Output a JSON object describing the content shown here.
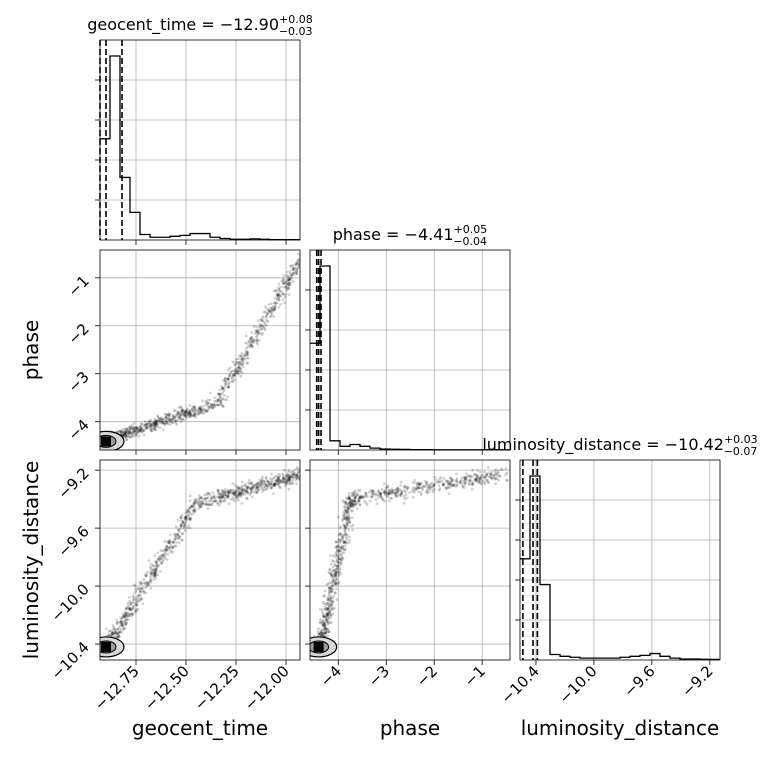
{
  "chart_data": {
    "type": "corner",
    "parameters": [
      "geocent_time",
      "phase",
      "luminosity_distance"
    ],
    "xlabels": [
      "geocent_time",
      "phase",
      "luminosity_distance"
    ],
    "ylabels": [
      "phase",
      "luminosity_distance"
    ],
    "titles": [
      {
        "name": "geocent_time",
        "median": "−12.90",
        "plus": "+0.08",
        "minus": "−0.03"
      },
      {
        "name": "phase",
        "median": "−4.41",
        "plus": "+0.05",
        "minus": "−0.04"
      },
      {
        "name": "luminosity_distance",
        "median": "−10.42",
        "plus": "+0.03",
        "minus": "−0.07"
      }
    ],
    "ranges": {
      "geocent_time": [
        -12.93,
        -11.93
      ],
      "phase": [
        -4.59,
        -0.42
      ],
      "luminosity_distance": [
        -10.51,
        -9.13
      ]
    },
    "ticks": {
      "geocent_time": [
        -12.75,
        -12.5,
        -12.25,
        -12.0
      ],
      "phase": [
        -4,
        -3,
        -2,
        -1
      ],
      "luminosity_distance": [
        -10.4,
        -10.0,
        -9.6,
        -9.2
      ]
    },
    "tick_labels": {
      "geocent_time": [
        "−12.75",
        "−12.50",
        "−12.25",
        "−12.00"
      ],
      "phase": [
        "−4",
        "−3",
        "−2",
        "−1"
      ],
      "luminosity_distance": [
        "−10.4",
        "−10.0",
        "−9.6",
        "−9.2"
      ]
    },
    "quantile_lines": {
      "geocent_time": [
        -12.93,
        -12.9,
        -12.82
      ],
      "phase": [
        -4.45,
        -4.41,
        -4.36
      ],
      "luminosity_distance": [
        -10.49,
        -10.42,
        -10.39
      ]
    },
    "histograms": {
      "geocent_time": [
        0.55,
        1.0,
        0.34,
        0.15,
        0.03,
        0.015,
        0.015,
        0.02,
        0.025,
        0.035,
        0.035,
        0.015,
        0.008,
        0.004,
        0.004,
        0.006,
        0.004,
        0.002,
        0.002,
        0.002
      ],
      "phase": [
        0.58,
        1.0,
        0.05,
        0.02,
        0.03,
        0.02,
        0.01,
        0.005,
        0.004,
        0.003,
        0.002,
        0.002,
        0.001,
        0.001,
        0.001,
        0.001,
        0.001,
        0.001,
        0.001,
        0.001
      ],
      "luminosity_distance": [
        0.55,
        1.0,
        0.41,
        0.03,
        0.02,
        0.015,
        0.01,
        0.01,
        0.01,
        0.01,
        0.015,
        0.02,
        0.025,
        0.035,
        0.02,
        0.01,
        0.005,
        0.005,
        0.004,
        0.003
      ]
    },
    "grid": true
  },
  "colors": {
    "axes": "#000000",
    "grid": "#b0b0b0",
    "points": "#000000",
    "background": "#ffffff"
  }
}
